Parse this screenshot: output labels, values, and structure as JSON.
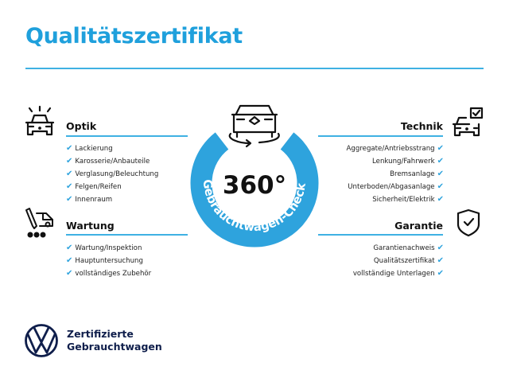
{
  "title": "Qualitätszertifikat",
  "colors": {
    "accent": "#1fa0dc",
    "ring": "#2ea3dd",
    "brand_navy": "#0f1e4b"
  },
  "center": {
    "degrees": "360°",
    "arc_text": "Gebrauchtwagen-Check",
    "icon": "car-rotate-icon"
  },
  "sections": {
    "optik": {
      "title": "Optik",
      "icon": "car-lights-icon",
      "items": [
        "Lackierung",
        "Karosserie/Anbauteile",
        "Verglasung/Beleuchtung",
        "Felgen/Reifen",
        "Innenraum"
      ]
    },
    "wartung": {
      "title": "Wartung",
      "icon": "tools-van-icon",
      "items": [
        "Wartung/Inspektion",
        "Hauptuntersuchung",
        "vollständiges Zubehör"
      ]
    },
    "technik": {
      "title": "Technik",
      "icon": "car-checkbox-icon",
      "items": [
        "Aggregate/Antriebsstrang",
        "Lenkung/Fahrwerk",
        "Bremsanlage",
        "Unterboden/Abgasanlage",
        "Sicherheit/Elektrik"
      ]
    },
    "garantie": {
      "title": "Garantie",
      "icon": "shield-check-icon",
      "items": [
        "Garantienachweis",
        "Qualitätszertifikat",
        "vollständige Unterlagen"
      ]
    }
  },
  "check_glyph": "✔",
  "brand": {
    "line1": "Zertifizierte",
    "line2": "Gebrauchtwagen",
    "logo": "vw-logo"
  }
}
